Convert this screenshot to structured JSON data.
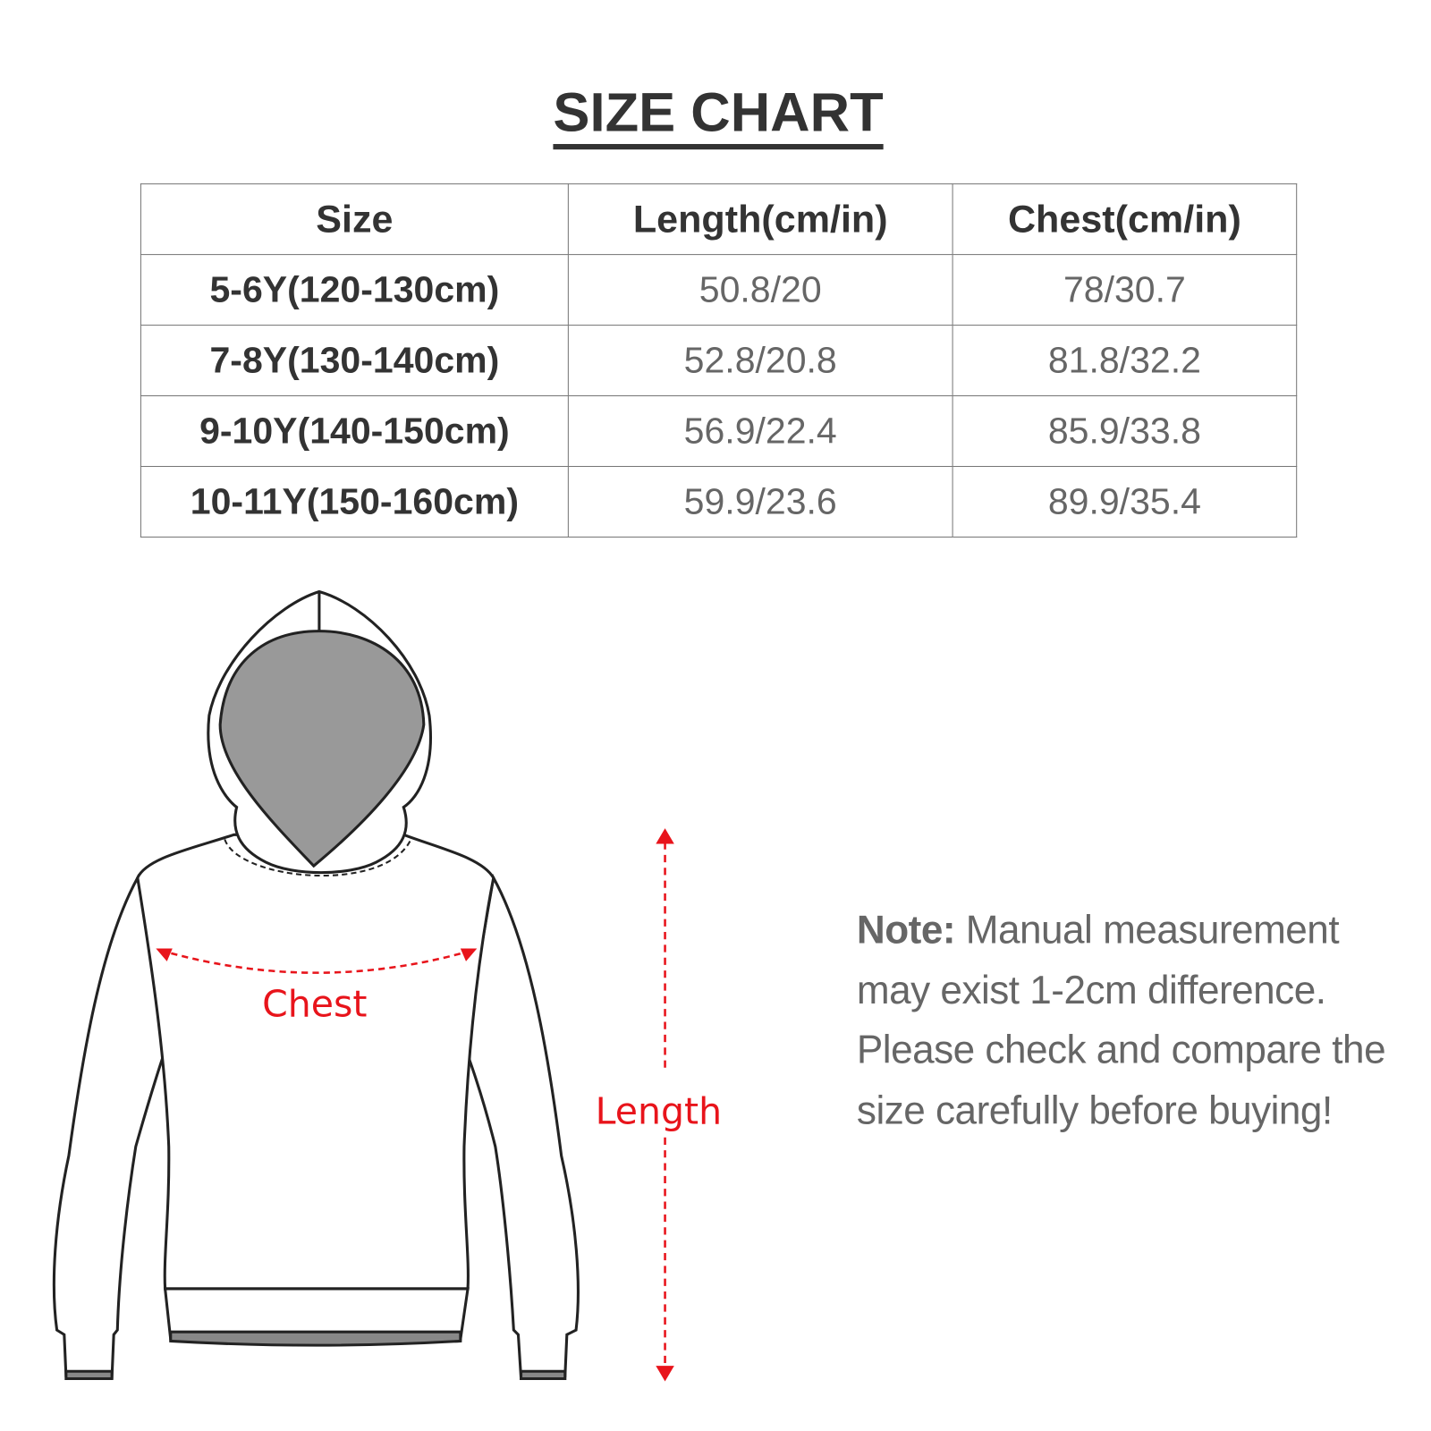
{
  "title": "SIZE CHART",
  "table": {
    "headers": [
      "Size",
      "Length(cm/in)",
      "Chest(cm/in)"
    ],
    "rows": [
      [
        "5-6Y(120-130cm)",
        "50.8/20",
        "78/30.7"
      ],
      [
        "7-8Y(130-140cm)",
        "52.8/20.8",
        "81.8/32.2"
      ],
      [
        "9-10Y(140-150cm)",
        "56.9/22.4",
        "85.9/33.8"
      ],
      [
        "10-11Y(150-160cm)",
        "59.9/23.6",
        "89.9/35.4"
      ]
    ]
  },
  "diagram": {
    "chest_label": "Chest",
    "length_label": "Length",
    "measure_color": "#e8141b"
  },
  "note": {
    "label": "Note:",
    "text": " Manual measurement may exist 1-2cm difference. Please check and compare the size carefully before buying!"
  }
}
